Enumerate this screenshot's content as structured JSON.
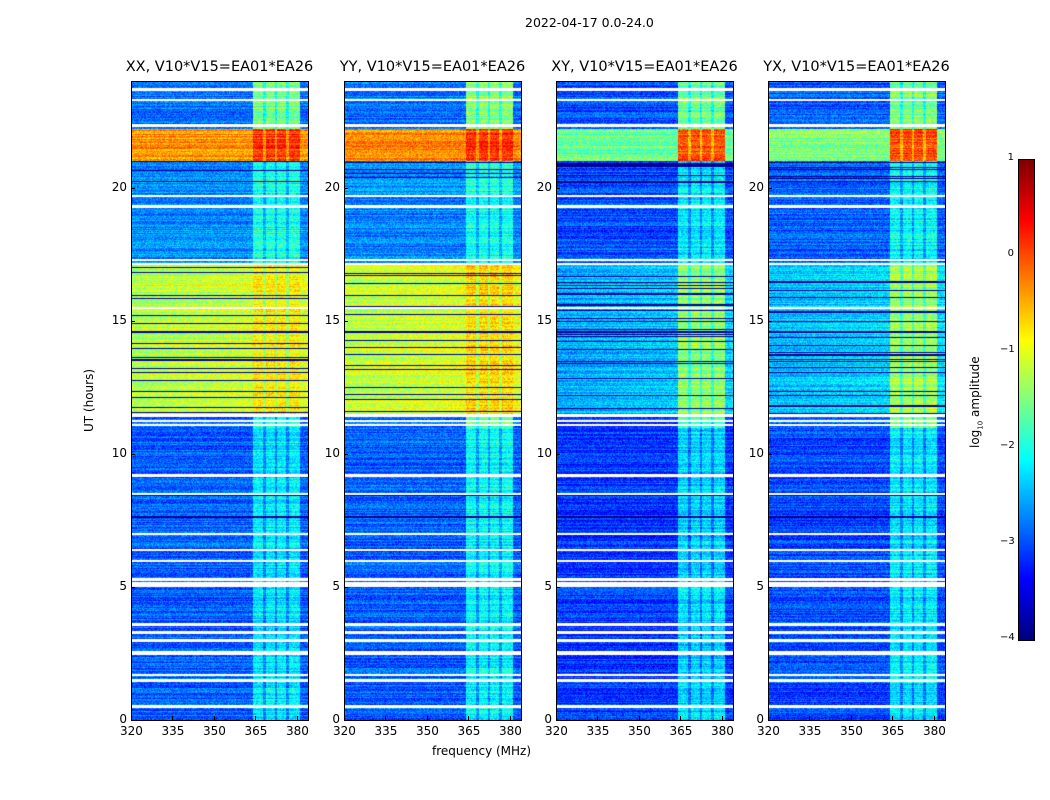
{
  "chart_data": {
    "type": "heatmap",
    "suptitle": "2022-04-17 0.0-24.0",
    "xlabel": "frequency (MHz)",
    "ylabel": "UT (hours)",
    "xlim": [
      320,
      384
    ],
    "ylim": [
      0,
      24
    ],
    "xticks": [
      320,
      335,
      350,
      365,
      380
    ],
    "yticks": [
      0,
      5,
      10,
      15,
      20
    ],
    "colorbar": {
      "label": "log10 amplitude",
      "label_main": "log",
      "label_sub": "10",
      "label_rest": " amplitude",
      "range": [
        -4,
        1
      ],
      "ticks": [
        1,
        0,
        -1,
        -2,
        -3,
        -4
      ],
      "tick_labels": [
        "1",
        "0",
        "−1",
        "−2",
        "−3",
        "−4"
      ],
      "colormap": "jet"
    },
    "rfi_band_mhz": [
      364,
      381
    ],
    "flagged_hours": [
      0.5,
      0.55,
      1.5,
      1.7,
      2.5,
      2.55,
      3.0,
      3.3,
      3.6,
      5.05,
      5.15,
      5.3,
      6.0,
      6.4,
      7.0,
      8.5,
      9.2,
      11.1,
      11.25,
      11.45,
      15.5,
      17.15,
      17.3,
      19.3,
      19.7,
      22.35,
      23.3,
      23.7
    ],
    "dark_hours": [
      7.65,
      8.45,
      14.6
    ],
    "panels": [
      {
        "title": "XX, V10*V15=EA01*EA26",
        "segments": [
          [
            0,
            11,
            -2.9,
            -2.2
          ],
          [
            11,
            11.4,
            -2.9,
            -2.0
          ],
          [
            11.4,
            17.1,
            -1.25,
            -0.8
          ],
          [
            17.1,
            21,
            -2.7,
            -2.0
          ],
          [
            21,
            22.2,
            -0.35,
            0.15
          ],
          [
            22.2,
            24,
            -2.8,
            -1.5
          ]
        ]
      },
      {
        "title": "YY, V10*V15=EA01*EA26",
        "segments": [
          [
            0,
            11,
            -2.9,
            -2.1
          ],
          [
            11,
            11.4,
            -2.9,
            -1.6
          ],
          [
            11.4,
            17.1,
            -1.2,
            -0.7
          ],
          [
            17.1,
            21,
            -2.7,
            -2.0
          ],
          [
            21,
            22.2,
            -0.35,
            0.1
          ],
          [
            22.2,
            24,
            -2.8,
            -1.4
          ]
        ]
      },
      {
        "title": "XY, V10*V15=EA01*EA26",
        "segments": [
          [
            0,
            11,
            -3.1,
            -2.3
          ],
          [
            11,
            11.4,
            -3.1,
            -1.7
          ],
          [
            11.4,
            17.1,
            -2.55,
            -1.4
          ],
          [
            17.1,
            21,
            -3.0,
            -2.2
          ],
          [
            21,
            22.2,
            -1.6,
            0.0
          ],
          [
            22.2,
            24,
            -3.0,
            -1.6
          ]
        ]
      },
      {
        "title": "YX, V10*V15=EA01*EA26",
        "segments": [
          [
            0,
            11,
            -3.0,
            -2.2
          ],
          [
            11,
            11.4,
            -3.0,
            -1.6
          ],
          [
            11.4,
            17.1,
            -2.45,
            -1.3
          ],
          [
            17.1,
            21,
            -2.9,
            -2.1
          ],
          [
            21,
            22.2,
            -1.5,
            0.0
          ],
          [
            22.2,
            24,
            -2.9,
            -1.5
          ]
        ]
      }
    ]
  }
}
